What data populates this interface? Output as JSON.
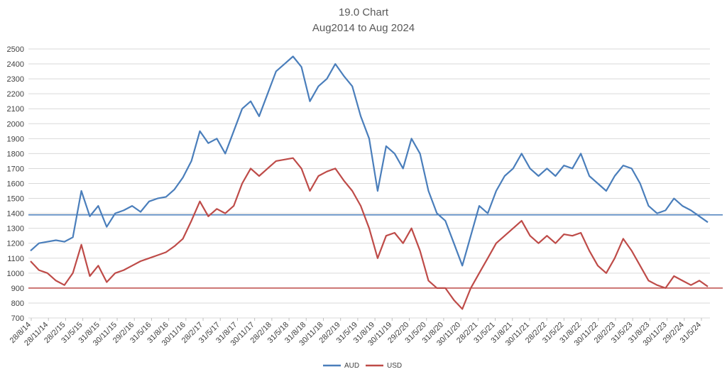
{
  "chart_data": {
    "type": "line",
    "title": "19.0 Chart",
    "subtitle": "Aug2014  to Aug 2024",
    "xlabel": "",
    "ylabel": "",
    "ylim": [
      700,
      2500
    ],
    "yticks": [
      700,
      800,
      900,
      1000,
      1100,
      1200,
      1300,
      1400,
      1500,
      1600,
      1700,
      1800,
      1900,
      2000,
      2100,
      2200,
      2300,
      2400,
      2500
    ],
    "grid": "horizontal",
    "legend": "bottom-center",
    "x_tick_labels": [
      "28/8/14",
      "28/11/14",
      "28/2/15",
      "31/5/15",
      "31/8/15",
      "30/11/15",
      "29/2/16",
      "31/5/16",
      "31/8/16",
      "30/11/16",
      "28/2/17",
      "31/5/17",
      "31/8/17",
      "30/11/17",
      "28/2/18",
      "31/5/18",
      "31/8/18",
      "30/11/18",
      "28/2/19",
      "31/5/19",
      "31/8/19",
      "30/11/19",
      "29/2/20",
      "31/5/20",
      "31/8/20",
      "30/11/20",
      "28/2/21",
      "31/5/21",
      "31/8/21",
      "30/11/21",
      "28/2/22",
      "31/5/22",
      "31/8/22",
      "30/11/22",
      "28/2/23",
      "31/5/23",
      "31/8/23",
      "30/11/23",
      "29/2/24",
      "31/5/24"
    ],
    "series": [
      {
        "name": "AUD",
        "color": "#4a7ebb",
        "values": [
          1150,
          1200,
          1210,
          1220,
          1210,
          1240,
          1550,
          1380,
          1450,
          1310,
          1400,
          1420,
          1450,
          1410,
          1480,
          1500,
          1510,
          1560,
          1640,
          1750,
          1950,
          1870,
          1900,
          1800,
          1950,
          2100,
          2150,
          2050,
          2200,
          2350,
          2400,
          2450,
          2380,
          2150,
          2250,
          2300,
          2400,
          2320,
          2250,
          2050,
          1900,
          1550,
          1850,
          1800,
          1700,
          1900,
          1800,
          1550,
          1400,
          1350,
          1200,
          1050,
          1250,
          1450,
          1400,
          1550,
          1650,
          1700,
          1800,
          1700,
          1650,
          1700,
          1650,
          1720,
          1700,
          1800,
          1650,
          1600,
          1550,
          1650,
          1720,
          1700,
          1600,
          1450,
          1400,
          1420,
          1500,
          1450,
          1420,
          1380,
          1340
        ],
        "reference": 1390
      },
      {
        "name": "USD",
        "color": "#be4b48",
        "values": [
          1080,
          1020,
          1000,
          950,
          920,
          1000,
          1190,
          980,
          1050,
          940,
          1000,
          1020,
          1050,
          1080,
          1100,
          1120,
          1140,
          1180,
          1230,
          1350,
          1480,
          1380,
          1430,
          1400,
          1450,
          1600,
          1700,
          1650,
          1700,
          1750,
          1760,
          1770,
          1700,
          1550,
          1650,
          1680,
          1700,
          1620,
          1550,
          1450,
          1300,
          1100,
          1250,
          1270,
          1200,
          1300,
          1150,
          950,
          900,
          900,
          820,
          760,
          900,
          1000,
          1100,
          1200,
          1250,
          1300,
          1350,
          1250,
          1200,
          1250,
          1200,
          1260,
          1250,
          1270,
          1150,
          1050,
          1000,
          1100,
          1230,
          1150,
          1050,
          950,
          920,
          900,
          980,
          950,
          920,
          950,
          910
        ],
        "reference": 900
      }
    ]
  }
}
